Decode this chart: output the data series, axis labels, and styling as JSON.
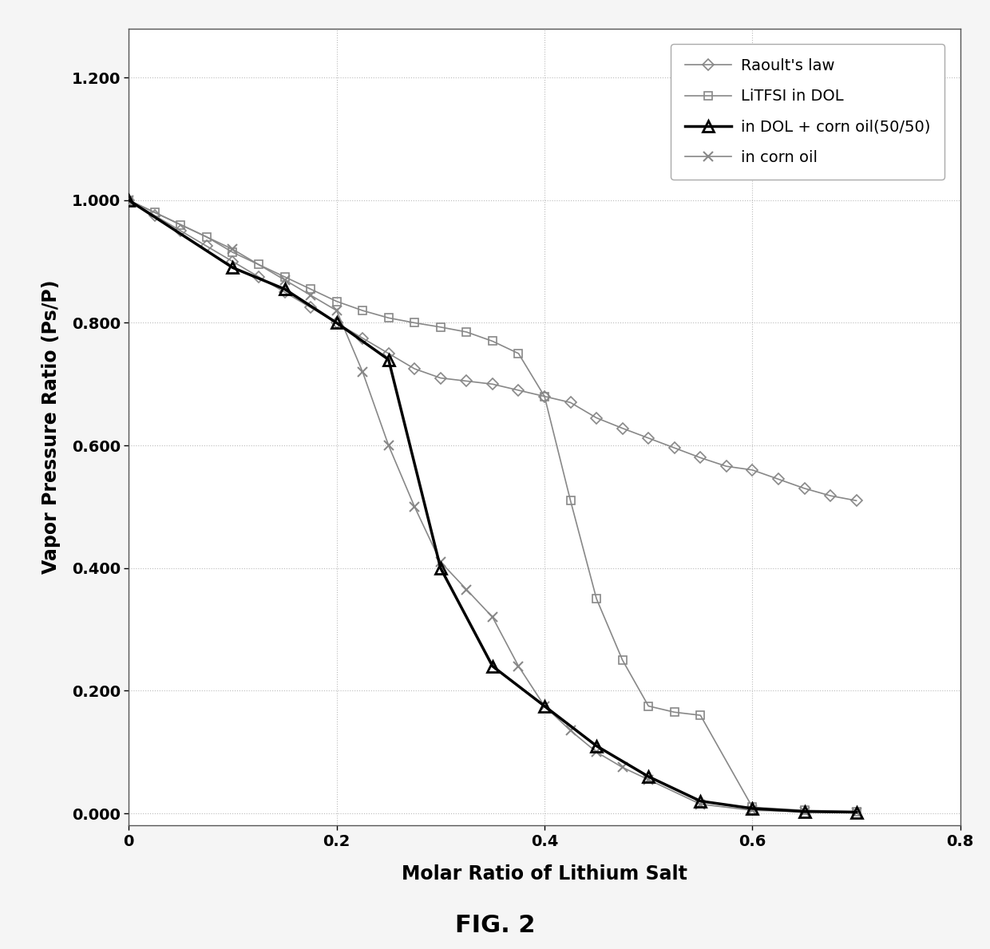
{
  "title": "FIG. 2",
  "xlabel": "Molar Ratio of Lithium Salt",
  "ylabel": "Vapor Pressure Ratio (Ps/P)",
  "xlim": [
    0,
    0.8
  ],
  "ylim": [
    -0.02,
    1.28
  ],
  "xticks": [
    0,
    0.2,
    0.4,
    0.6,
    0.8
  ],
  "yticks": [
    0.0,
    0.2,
    0.4,
    0.6,
    0.8,
    1.0,
    1.2
  ],
  "raoult": {
    "x": [
      0,
      0.025,
      0.05,
      0.075,
      0.1,
      0.125,
      0.15,
      0.175,
      0.2,
      0.225,
      0.25,
      0.275,
      0.3,
      0.325,
      0.35,
      0.375,
      0.4,
      0.425,
      0.45,
      0.475,
      0.5,
      0.525,
      0.55,
      0.575,
      0.6,
      0.625,
      0.65,
      0.675,
      0.7
    ],
    "y": [
      1.0,
      0.975,
      0.95,
      0.925,
      0.9,
      0.875,
      0.85,
      0.825,
      0.8,
      0.775,
      0.75,
      0.725,
      0.71,
      0.705,
      0.7,
      0.69,
      0.68,
      0.67,
      0.645,
      0.628,
      0.612,
      0.596,
      0.58,
      0.566,
      0.56,
      0.545,
      0.53,
      0.518,
      0.51
    ],
    "color": "#888888",
    "marker": "D",
    "label": "Raoult's law",
    "linewidth": 1.2,
    "markersize": 7
  },
  "litfsi_dol": {
    "x": [
      0,
      0.025,
      0.05,
      0.075,
      0.1,
      0.125,
      0.15,
      0.175,
      0.2,
      0.225,
      0.25,
      0.275,
      0.3,
      0.325,
      0.35,
      0.375,
      0.4,
      0.425,
      0.45,
      0.475,
      0.5,
      0.525,
      0.55,
      0.6,
      0.65,
      0.7
    ],
    "y": [
      1.0,
      0.98,
      0.96,
      0.94,
      0.915,
      0.895,
      0.875,
      0.855,
      0.835,
      0.82,
      0.808,
      0.8,
      0.793,
      0.785,
      0.77,
      0.75,
      0.68,
      0.51,
      0.35,
      0.25,
      0.175,
      0.165,
      0.16,
      0.01,
      0.005,
      0.003
    ],
    "color": "#888888",
    "marker": "s",
    "label": "LiTFSI in DOL",
    "linewidth": 1.2,
    "markersize": 7
  },
  "dol_corn": {
    "x": [
      0,
      0.1,
      0.15,
      0.2,
      0.25,
      0.3,
      0.35,
      0.4,
      0.45,
      0.5,
      0.55,
      0.6,
      0.65,
      0.7
    ],
    "y": [
      1.0,
      0.89,
      0.855,
      0.8,
      0.74,
      0.4,
      0.24,
      0.175,
      0.11,
      0.06,
      0.02,
      0.008,
      0.003,
      0.002
    ],
    "color": "#000000",
    "marker": "^",
    "label": "in DOL + corn oil(50/50)",
    "linewidth": 2.5,
    "markersize": 10
  },
  "corn_oil": {
    "x": [
      0,
      0.1,
      0.15,
      0.175,
      0.2,
      0.225,
      0.25,
      0.275,
      0.3,
      0.325,
      0.35,
      0.375,
      0.4,
      0.425,
      0.45,
      0.475,
      0.5,
      0.55,
      0.6,
      0.65,
      0.7
    ],
    "y": [
      1.0,
      0.92,
      0.87,
      0.845,
      0.82,
      0.72,
      0.6,
      0.5,
      0.41,
      0.365,
      0.32,
      0.24,
      0.175,
      0.135,
      0.1,
      0.075,
      0.055,
      0.015,
      0.005,
      0.003,
      0.002
    ],
    "color": "#888888",
    "marker": "x",
    "label": "in corn oil",
    "linewidth": 1.2,
    "markersize": 9
  },
  "background_color": "#f5f5f5",
  "plot_bg_color": "#ffffff",
  "grid_color": "#bbbbbb",
  "legend_fontsize": 14,
  "axis_label_fontsize": 17,
  "tick_fontsize": 14,
  "title_fontsize": 22
}
